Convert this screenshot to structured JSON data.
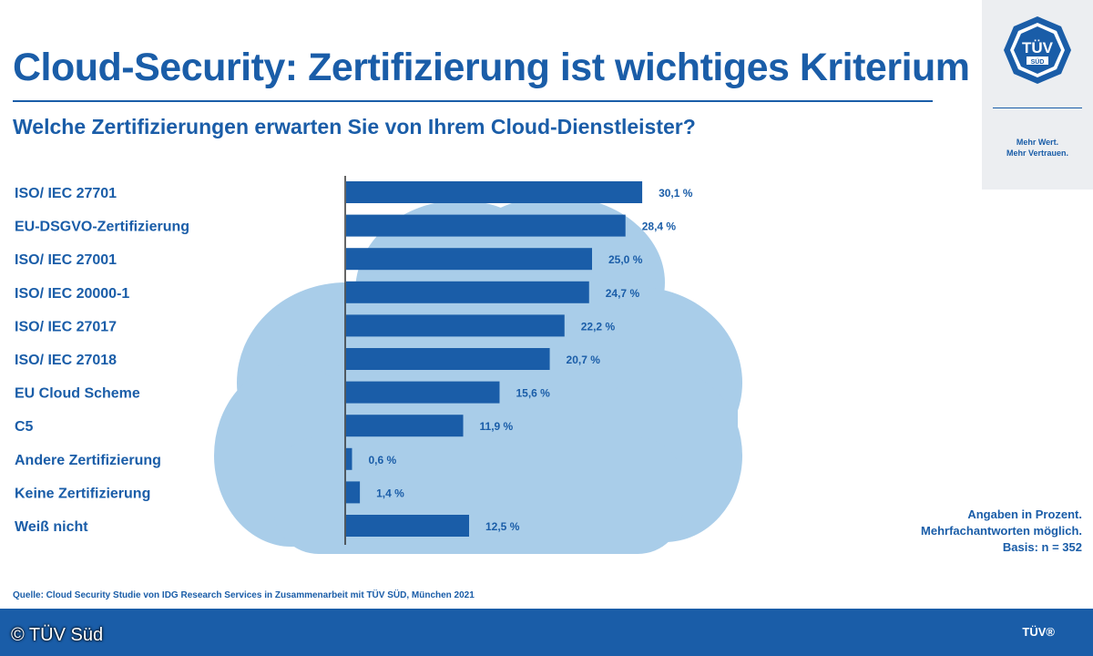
{
  "title": "Cloud-Security: Zertifizierung ist wichtiges Kriterium",
  "subtitle": "Welche Zertifizierungen erwarten Sie von Ihrem Cloud-Dienstleister?",
  "logo": {
    "text": "TÜV",
    "sub": "SÜD",
    "tagline_1": "Mehr Wert.",
    "tagline_2": "Mehr Vertrauen."
  },
  "notes": {
    "line1": "Angaben in Prozent.",
    "line2": "Mehrfachantworten möglich.",
    "line3": "Basis: n = 352"
  },
  "source": "Quelle: Cloud Security Studie von IDG Research Services in Zusammenarbeit mit TÜV SÜD, München 2021",
  "footer_brand": "TÜV®",
  "copyright": "© TÜV Süd",
  "colors": {
    "bar": "#1a5da8",
    "cloud": "#a9cde9",
    "text": "#1a5da8"
  },
  "chart_data": {
    "type": "bar",
    "orientation": "horizontal",
    "categories": [
      "ISO/ IEC 27701",
      "EU-DSGVO-Zertifizierung",
      "ISO/ IEC 27001",
      "ISO/ IEC 20000-1",
      "ISO/ IEC 27017",
      "ISO/ IEC 27018",
      "EU Cloud Scheme",
      "C5",
      "Andere Zertifizierung",
      "Keine Zertifizierung",
      "Weiß nicht"
    ],
    "values": [
      30.1,
      28.4,
      25.0,
      24.7,
      22.2,
      20.7,
      15.6,
      11.9,
      0.6,
      1.4,
      12.5
    ],
    "value_labels": [
      "30,1 %",
      "28,4 %",
      "25,0 %",
      "24,7 %",
      "22,2 %",
      "20,7 %",
      "15,6 %",
      "11,9 %",
      "0,6 %",
      "1,4 %",
      "12,5 %"
    ],
    "unit": "%",
    "xlim": [
      0,
      35
    ]
  }
}
